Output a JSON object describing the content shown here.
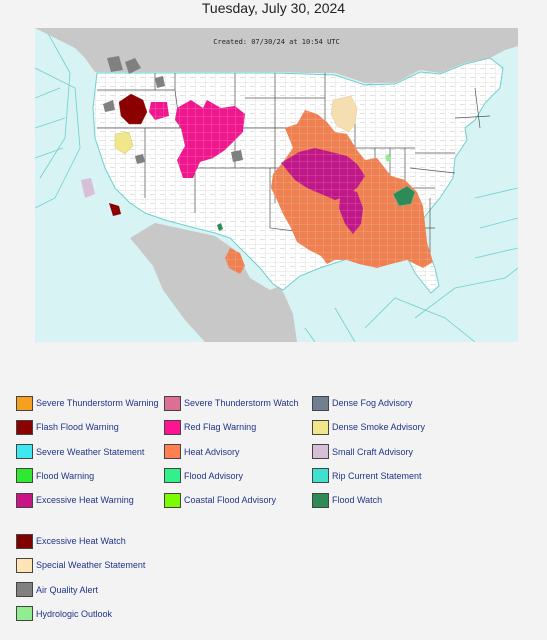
{
  "header": {
    "date": "Tuesday, July 30, 2024"
  },
  "map": {
    "created_stamp": "Created: 07/30/24 at 10:54 UTC",
    "colors": {
      "ocean": "#d7f3f3",
      "land": "#ffffff",
      "foreign_land": "#c8c8c8",
      "county_lines": "#b9b9b9",
      "coast_lines": "#6fd0d0",
      "state_lines": "#555555"
    }
  },
  "legend": {
    "columns": [
      [
        {
          "label": "Severe Thunderstorm Warning",
          "color": "#f5a020"
        },
        {
          "label": "Flash Flood Warning",
          "color": "#8b0000"
        },
        {
          "label": "Severe Weather Statement",
          "color": "#3ee8f0"
        },
        {
          "label": "Flood Warning",
          "color": "#2fe82f"
        },
        {
          "label": "Excessive Heat Warning",
          "color": "#c71585"
        }
      ],
      [
        {
          "label": "Severe Thunderstorm Watch",
          "color": "#db7093"
        },
        {
          "label": "Red Flag Warning",
          "color": "#ff1493"
        },
        {
          "label": "Heat Advisory",
          "color": "#ff7f50"
        },
        {
          "label": "Flood Advisory",
          "color": "#32f08a"
        },
        {
          "label": "Coastal Flood Advisory",
          "color": "#7cfc00"
        }
      ],
      [
        {
          "label": "Dense Fog Advisory",
          "color": "#708090"
        },
        {
          "label": "Dense Smoke Advisory",
          "color": "#f0e68c"
        },
        {
          "label": "Small Craft Advisory",
          "color": "#d8bfd8"
        },
        {
          "label": "Rip Current Statement",
          "color": "#40e0d0"
        },
        {
          "label": "Flood Watch",
          "color": "#2e8b57"
        }
      ],
      [
        {
          "label": "Excessive Heat Watch",
          "color": "#800000"
        },
        {
          "label": "Special Weather Statement",
          "color": "#ffe4b5"
        },
        {
          "label": "Air Quality Alert",
          "color": "#808080"
        },
        {
          "label": "Hydrologic Outlook",
          "color": "#90ee90"
        }
      ]
    ]
  }
}
